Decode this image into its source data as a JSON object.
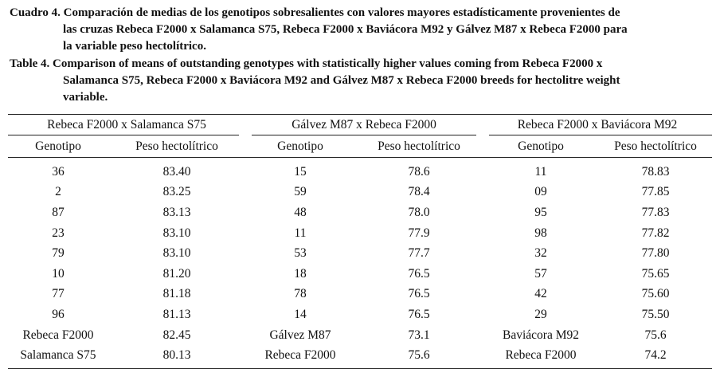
{
  "caption_es": {
    "label": "Cuadro 4.",
    "line1": "Comparación de medias de los genotipos sobresalientes con valores mayores estadísticamente provenientes de",
    "line2": "las cruzas Rebeca F2000 x Salamanca S75, Rebeca F2000 x Baviácora M92 y Gálvez M87 x Rebeca F2000 para",
    "line3": "la variable peso hectolítrico."
  },
  "caption_en": {
    "label": "Table 4.",
    "line1": "Comparison of means of outstanding genotypes with statistically higher values coming from Rebeca F2000 x",
    "line2": "Salamanca S75, Rebeca F2000 x Baviácora M92 and Gálvez M87 x Rebeca F2000 breeds for hectolitre weight",
    "line3": "variable."
  },
  "table": {
    "groups": [
      "Rebeca F2000 x Salamanca S75",
      "Gálvez M87 x Rebeca F2000",
      "Rebeca F2000 x Baviácora M92"
    ],
    "columns": [
      "Genotipo",
      "Peso hectolítrico",
      "Genotipo",
      "Peso hectolítrico",
      "Genotipo",
      "Peso hectolítrico"
    ],
    "rows": [
      [
        "36",
        "83.40",
        "15",
        "78.6",
        "11",
        "78.83"
      ],
      [
        "2",
        "83.25",
        "59",
        "78.4",
        "09",
        "77.85"
      ],
      [
        "87",
        "83.13",
        "48",
        "78.0",
        "95",
        "77.83"
      ],
      [
        "23",
        "83.10",
        "11",
        "77.9",
        "98",
        "77.82"
      ],
      [
        "79",
        "83.10",
        "53",
        "77.7",
        "32",
        "77.80"
      ],
      [
        "10",
        "81.20",
        "18",
        "76.5",
        "57",
        "75.65"
      ],
      [
        "77",
        "81.18",
        "78",
        "76.5",
        "42",
        "75.60"
      ],
      [
        "96",
        "81.13",
        "14",
        "76.5",
        "29",
        "75.50"
      ],
      [
        "Rebeca F2000",
        "82.45",
        "Gálvez M87",
        "73.1",
        "Baviácora M92",
        "75.6"
      ],
      [
        "Salamanca S75",
        "80.13",
        "Rebeca F2000",
        "75.6",
        "Rebeca F2000",
        "74.2"
      ]
    ]
  }
}
